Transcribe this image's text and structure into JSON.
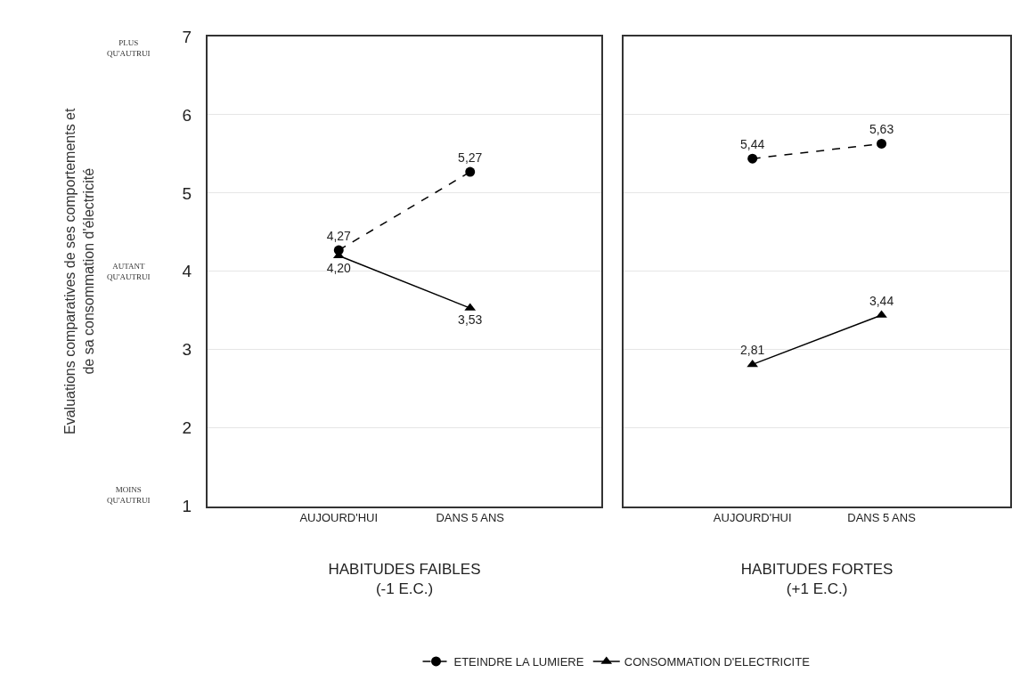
{
  "chart_data": [
    {
      "type": "line",
      "xlabel": "HABITUDES FAIBLES\n(-1 E.C.)",
      "ylabel": "Evaluations comparatives de ses comportements et\nde sa consommation d'électricité",
      "categories": [
        "AUJOURD'HUI",
        "DANS 5 ANS"
      ],
      "series": [
        {
          "name": "ETEINDRE LA LUMIERE",
          "color": "#000000",
          "values": [
            4.27,
            5.27
          ],
          "value_labels": [
            "4,27",
            "5,27"
          ],
          "line_style": "dashed",
          "marker": "circle"
        },
        {
          "name": "CONSOMMATION D'ELECTRICITE",
          "color": "#000000",
          "values": [
            4.2,
            3.53
          ],
          "value_labels": [
            "4,20",
            "3,53"
          ],
          "line_style": "solid",
          "marker": "triangle"
        }
      ],
      "ylim": [
        1,
        7
      ],
      "yticks": [
        1,
        2,
        3,
        4,
        5,
        6,
        7
      ],
      "grid": "y",
      "legend": "bottom",
      "annotations": [
        "PLUS QU'AUTRUI",
        "AUTANT QU'AUTRUI",
        "MOINS QU'AUTRUI"
      ]
    },
    {
      "type": "line",
      "xlabel": "HABITUDES FORTES\n(+1 E.C.)",
      "categories": [
        "AUJOURD'HUI",
        "DANS 5 ANS"
      ],
      "series": [
        {
          "name": "ETEINDRE LA LUMIERE",
          "color": "#000000",
          "values": [
            5.44,
            5.63
          ],
          "value_labels": [
            "5,44",
            "5,63"
          ],
          "line_style": "dashed",
          "marker": "circle"
        },
        {
          "name": "CONSOMMATION D'ELECTRICITE",
          "color": "#000000",
          "values": [
            2.81,
            3.44
          ],
          "value_labels": [
            "2,81",
            "3,44"
          ],
          "line_style": "solid",
          "marker": "triangle"
        }
      ],
      "ylim": [
        1,
        7
      ],
      "yticks": [
        1,
        2,
        3,
        4,
        5,
        6,
        7
      ],
      "grid": "y",
      "legend": "bottom",
      "tick_labels": "x"
    }
  ]
}
